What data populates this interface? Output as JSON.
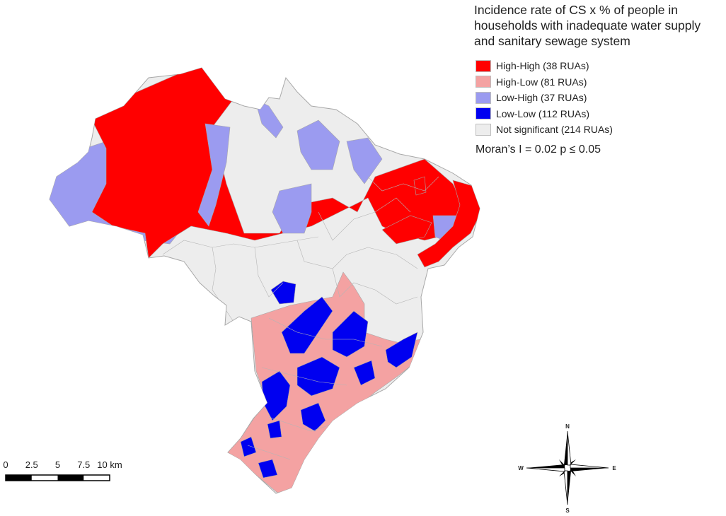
{
  "map": {
    "title": "Incidence rate of CS x % of people in households with inadequate water supply and sanitary sewage system",
    "legend": [
      {
        "key": "high-high",
        "label": "High-High (38 RUAs)",
        "color": "#ff0000"
      },
      {
        "key": "high-low",
        "label": "High-Low (81 RUAs)",
        "color": "#f4a2a2"
      },
      {
        "key": "low-high",
        "label": "Low-High (37 RUAs)",
        "color": "#9b9bf0"
      },
      {
        "key": "low-low",
        "label": "Low-Low (112 RUAs)",
        "color": "#0000f0"
      },
      {
        "key": "not-significant",
        "label": "Not significant (214 RUAs)",
        "color": "#ededed"
      }
    ],
    "statistic": "Moran’s I = 0.02 p ≤ 0.05",
    "scale_bar": {
      "ticks": [
        "0",
        "2.5",
        "5",
        "7.5",
        "10 km"
      ]
    },
    "compass": {
      "north": "N",
      "south": "S",
      "east": "E",
      "west": "W"
    },
    "colors": {
      "border": "#a8a8a8",
      "background": "#ffffff"
    }
  }
}
